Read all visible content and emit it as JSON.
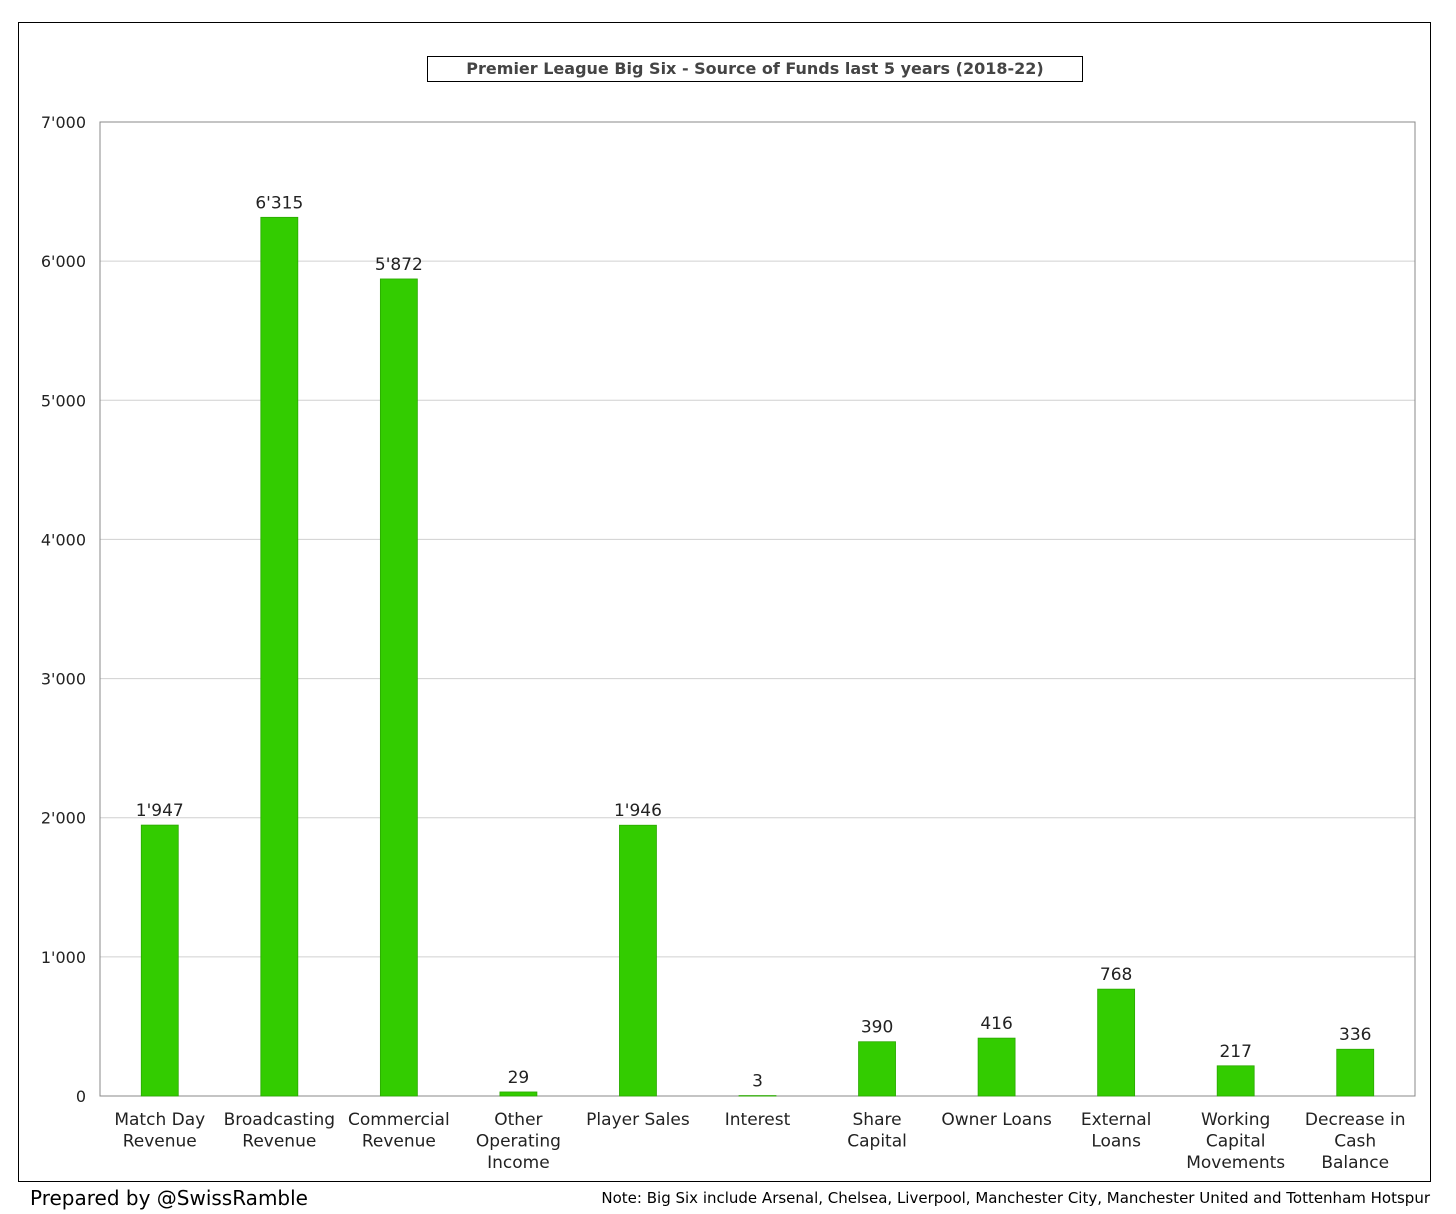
{
  "chart_data": {
    "type": "bar",
    "title": "Premier League Big Six - Source of Funds last 5 years (2018-22)",
    "xlabel": "",
    "ylabel": "",
    "ylim": [
      0,
      7000
    ],
    "yticks": [
      0,
      1000,
      2000,
      3000,
      4000,
      5000,
      6000,
      7000
    ],
    "ytick_labels": [
      "0",
      "1'000",
      "2'000",
      "3'000",
      "4'000",
      "5'000",
      "6'000",
      "7'000"
    ],
    "grid": true,
    "bar_color": "#33cc00",
    "categories": [
      [
        "Match Day",
        "Revenue"
      ],
      [
        "Broadcasting",
        "Revenue"
      ],
      [
        "Commercial",
        "Revenue"
      ],
      [
        "Other",
        "Operating",
        "Income"
      ],
      [
        "Player Sales"
      ],
      [
        "Interest"
      ],
      [
        "Share",
        "Capital"
      ],
      [
        "Owner Loans"
      ],
      [
        "External",
        "Loans"
      ],
      [
        "Working",
        "Capital",
        "Movements"
      ],
      [
        "Decrease in",
        "Cash",
        "Balance"
      ]
    ],
    "values": [
      1947,
      6315,
      5872,
      29,
      1946,
      3,
      390,
      416,
      768,
      217,
      336
    ],
    "data_labels": [
      "1'947",
      "6'315",
      "5'872",
      "29",
      "1'946",
      "3",
      "390",
      "416",
      "768",
      "217",
      "336"
    ]
  },
  "footer": {
    "credit": "Prepared by @SwissRamble",
    "note": "Note: Big Six include Arsenal, Chelsea, Liverpool, Manchester City, Manchester United and Tottenham Hotspur"
  }
}
